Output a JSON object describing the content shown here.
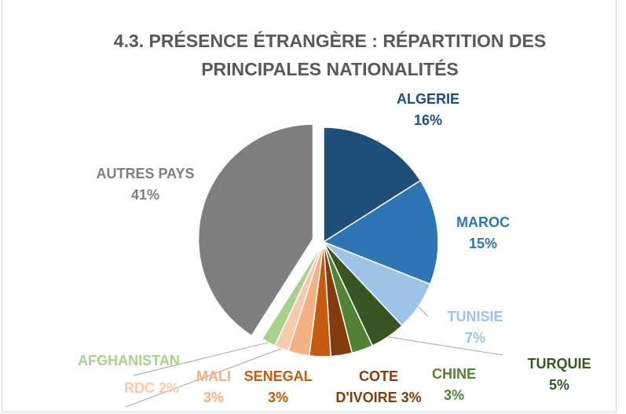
{
  "chart_data": {
    "type": "pie",
    "title": "4.3. PRÉSENCE ÉTRANGÈRE : RÉPARTITION DES PRINCIPALES NATIONALITÉS",
    "categories": [
      "ALGERIE",
      "MAROC",
      "TUNISIE",
      "TURQUIE",
      "CHINE",
      "COTE D'IVOIRE",
      "SENEGAL",
      "MALI",
      "RDC",
      "AFGHANISTAN",
      "AUTRES PAYS"
    ],
    "values": [
      16,
      15,
      7,
      5,
      3,
      3,
      3,
      3,
      2,
      2,
      41
    ],
    "value_labels": [
      "16%",
      "15%",
      "7%",
      "5%",
      "3%",
      "3%",
      "3%",
      "3%",
      "2%",
      null,
      "41%"
    ],
    "colors": [
      "#1f4e79",
      "#2e75b6",
      "#9dc3e6",
      "#375623",
      "#548235",
      "#843c0c",
      "#c55a11",
      "#f4b183",
      "#f8cbad",
      "#a9d18e",
      "#7f7f7f"
    ]
  }
}
